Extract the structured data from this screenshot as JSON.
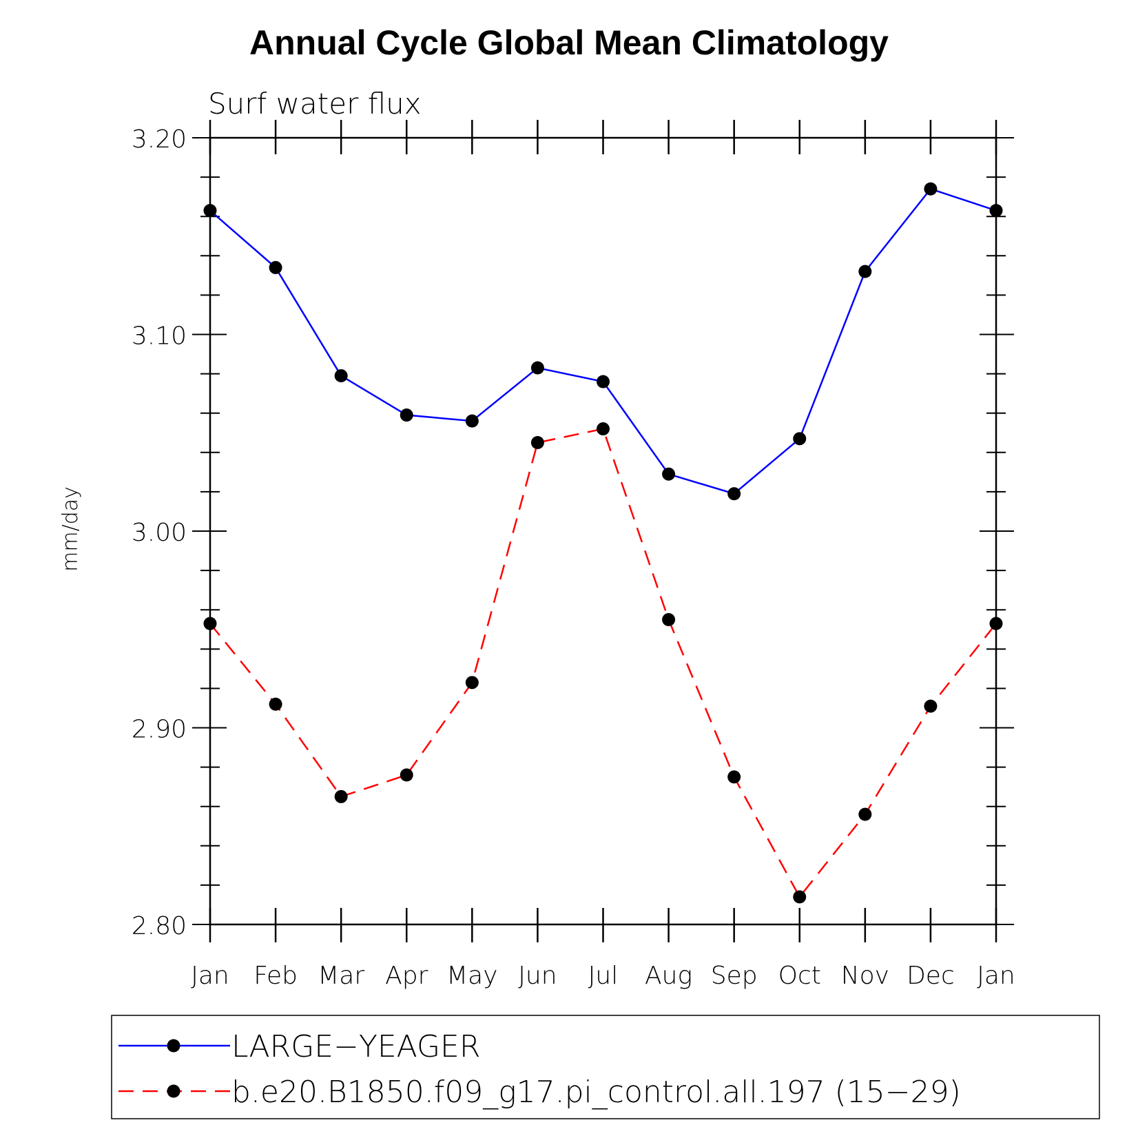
{
  "chart_data": {
    "type": "line",
    "title": "Annual Cycle Global Mean Climatology",
    "subtitle": "Surf water flux",
    "xlabel": "",
    "ylabel": "mm/day",
    "categories": [
      "Jan",
      "Feb",
      "Mar",
      "Apr",
      "May",
      "Jun",
      "Jul",
      "Aug",
      "Sep",
      "Oct",
      "Nov",
      "Dec",
      "Jan"
    ],
    "ylim": [
      2.8,
      3.2
    ],
    "yticks": [
      "2.80",
      "2.90",
      "3.00",
      "3.10",
      "3.20"
    ],
    "grid": false,
    "legend_position": "bottom",
    "series": [
      {
        "name": "LARGE−YEAGER",
        "color": "#0000ff",
        "dash": "solid",
        "marker": "circle",
        "values": [
          3.163,
          3.134,
          3.079,
          3.059,
          3.056,
          3.083,
          3.076,
          3.029,
          3.019,
          3.047,
          3.132,
          3.174,
          3.163
        ]
      },
      {
        "name": "b.e20.B1850.f09_g17.pi_control.all.197 (15−29)",
        "color": "#ff0000",
        "dash": "dashed",
        "marker": "circle",
        "values": [
          2.953,
          2.912,
          2.865,
          2.876,
          2.923,
          3.045,
          3.052,
          2.955,
          2.875,
          2.814,
          2.856,
          2.911,
          2.953
        ]
      }
    ]
  }
}
